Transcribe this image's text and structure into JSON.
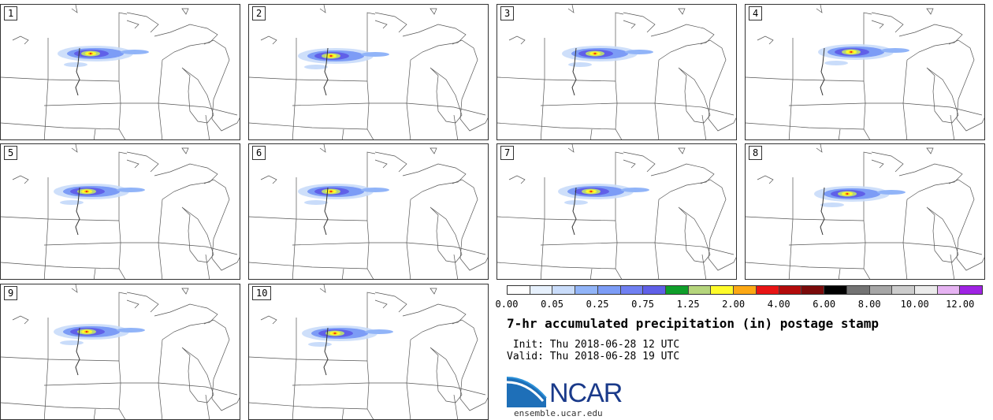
{
  "panels": [
    {
      "label": "1"
    },
    {
      "label": "2"
    },
    {
      "label": "3"
    },
    {
      "label": "4"
    },
    {
      "label": "5"
    },
    {
      "label": "6"
    },
    {
      "label": "7"
    },
    {
      "label": "8"
    },
    {
      "label": "9"
    },
    {
      "label": "10"
    }
  ],
  "colorbar": {
    "colors": [
      "#ffffff",
      "#e6f0fc",
      "#c9dcfa",
      "#91b4f8",
      "#7c9cf6",
      "#7080f2",
      "#6060e8",
      "#0f9e2a",
      "#b5d57c",
      "#fefb2a",
      "#fca814",
      "#e81414",
      "#b30a0a",
      "#7a0a0a",
      "#000000",
      "#737373",
      "#a6a6a6",
      "#cccccc",
      "#ebebeb",
      "#e6b3f2",
      "#9f23e3"
    ],
    "tick_labels": [
      "0.00",
      "0.05",
      "0.25",
      "0.75",
      "1.25",
      "2.00",
      "4.00",
      "6.00",
      "8.00",
      "10.00",
      "12.00"
    ]
  },
  "title": "7-hr accumulated precipitation (in) postage stamp",
  "init_text": " Init: Thu 2018-06-28 12 UTC",
  "valid_text": "Valid: Thu 2018-06-28 19 UTC",
  "logo": {
    "text": "NCAR",
    "url": "ensemble.ucar.edu",
    "color": "#1a3a8a"
  }
}
